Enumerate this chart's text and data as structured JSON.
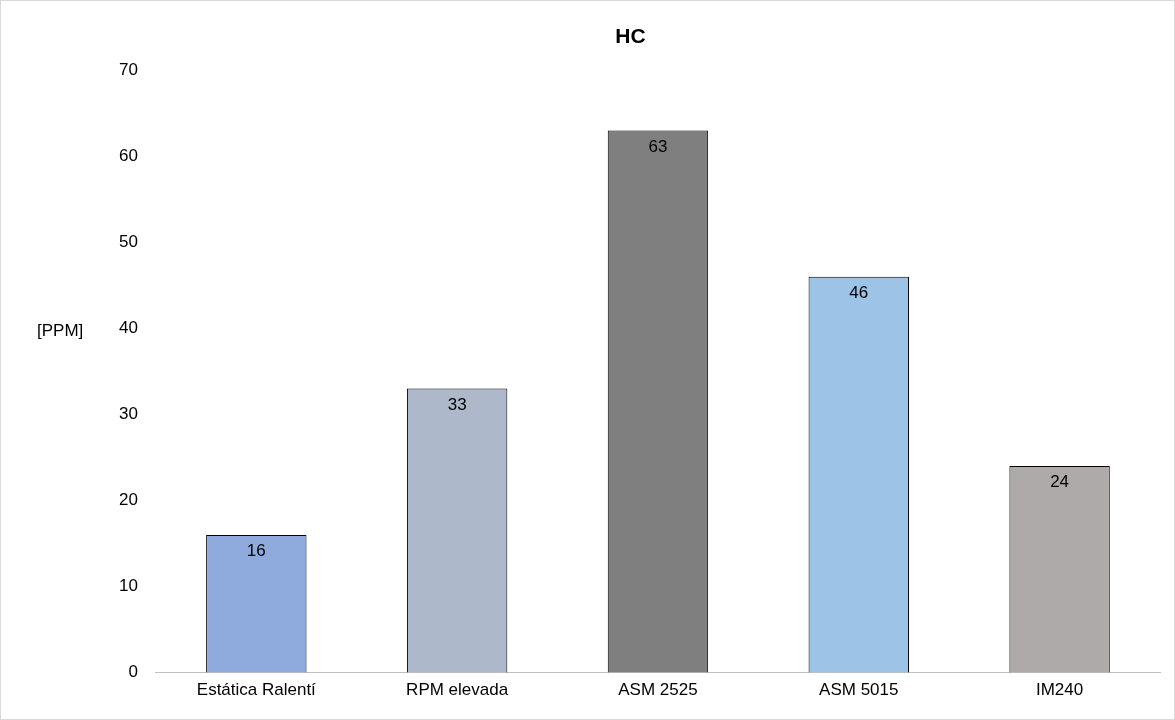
{
  "chart_data": {
    "type": "bar",
    "title": "HC",
    "ylabel": "[PPM]",
    "categories": [
      "Estática Ralentí",
      "RPM elevada",
      "ASM 2525",
      "ASM 5015",
      "IM240"
    ],
    "values": [
      16,
      33,
      63,
      46,
      24
    ],
    "colors": [
      "#8faadc",
      "#adb9ca",
      "#7f7f7f",
      "#9dc3e6",
      "#aeaaaa"
    ],
    "ylim": [
      0,
      70
    ],
    "yticks": [
      0,
      10,
      20,
      30,
      40,
      50,
      60,
      70
    ],
    "grid": false,
    "legend": false,
    "data_labels": true
  }
}
